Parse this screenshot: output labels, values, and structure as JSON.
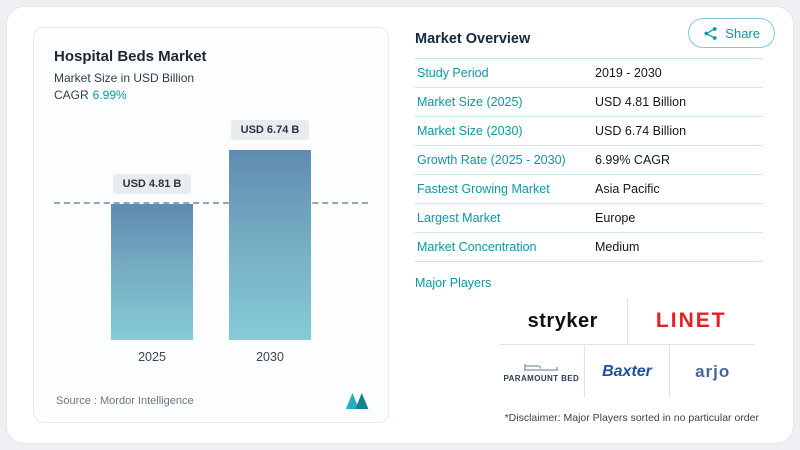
{
  "colors": {
    "accent": "#0d96a5",
    "bar_gradient_top": "#5f8bb1",
    "bar_gradient_bottom": "#86cbd6",
    "table_divider": "#cbe7ec",
    "linet_red": "#e32226",
    "baxter_blue": "#1d4fa1",
    "arjo_blue": "#46679b"
  },
  "share": {
    "label": "Share"
  },
  "left_panel": {
    "title": "Hospital Beds Market",
    "subtitle": "Market Size in USD Billion",
    "cagr_label": "CAGR",
    "cagr_value": "6.99%",
    "source": "Source :  Mordor Intelligence"
  },
  "chart_data": {
    "type": "bar",
    "title": "Hospital Beds Market",
    "ylabel": "Market Size in USD Billion",
    "categories": [
      "2025",
      "2030"
    ],
    "values": [
      4.81,
      6.74
    ],
    "bar_labels": [
      "USD 4.81 B",
      "USD 6.74 B"
    ],
    "ylim": [
      0,
      6.74
    ],
    "reference_line_at": 4.81,
    "grid": "single dashed reference line at 2025 value"
  },
  "overview": {
    "title": "Market Overview",
    "rows": [
      {
        "label": "Study Period",
        "value": "2019 - 2030"
      },
      {
        "label": "Market Size (2025)",
        "value": "USD 4.81 Billion"
      },
      {
        "label": "Market Size (2030)",
        "value": "USD 6.74 Billion"
      },
      {
        "label": "Growth Rate (2025 - 2030)",
        "value": "6.99% CAGR"
      },
      {
        "label": "Fastest Growing Market",
        "value": "Asia Pacific"
      },
      {
        "label": "Largest Market",
        "value": "Europe"
      },
      {
        "label": "Market Concentration",
        "value": "Medium"
      }
    ],
    "major_players_label": "Major Players",
    "players": [
      "stryker",
      "LINET",
      "PARAMOUNT BED",
      "Baxter",
      "arjo"
    ],
    "disclaimer": "*Disclaimer: Major Players sorted in no particular order"
  }
}
